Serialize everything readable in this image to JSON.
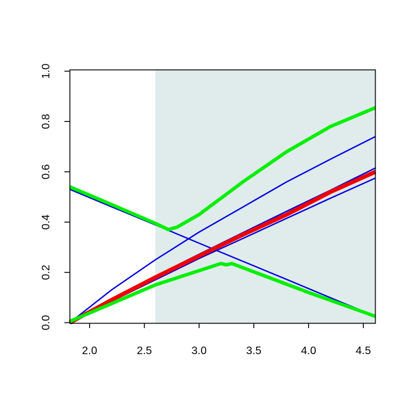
{
  "chart_data": {
    "type": "line",
    "xlim": [
      1.82,
      4.61
    ],
    "ylim": [
      0,
      1
    ],
    "xticks": [
      {
        "value": 2,
        "label": "2.0"
      },
      {
        "value": 2.5,
        "label": "2.5"
      },
      {
        "value": 3,
        "label": "3.0"
      },
      {
        "value": 3.5,
        "label": "3.5"
      },
      {
        "value": 4,
        "label": "4.0"
      },
      {
        "value": 4.5,
        "label": "4.5"
      }
    ],
    "yticks": [
      {
        "value": 0,
        "label": "0.0"
      },
      {
        "value": 0.2,
        "label": "0.2"
      },
      {
        "value": 0.4,
        "label": "0.4"
      },
      {
        "value": 0.6,
        "label": "0.6"
      },
      {
        "value": 0.8,
        "label": "0.8"
      },
      {
        "value": 1,
        "label": "1.0"
      }
    ],
    "shade": {
      "from": 2.6,
      "color": "#e0ecec"
    },
    "series": [
      {
        "color": "#0000dd",
        "x": [
          1.82,
          2.2,
          2.6,
          3.0,
          3.4,
          3.8,
          4.2,
          4.61
        ],
        "values": [
          0.53,
          0.461,
          0.389,
          0.316,
          0.244,
          0.172,
          0.099,
          0.025
        ]
      },
      {
        "color": "#0000dd",
        "x": [
          1.82,
          2.2,
          2.6,
          3.0,
          3.4,
          3.8,
          4.2,
          4.61
        ],
        "values": [
          0,
          0.13,
          0.25,
          0.36,
          0.46,
          0.56,
          0.65,
          0.74
        ]
      },
      {
        "color": "#0000dd",
        "x": [
          1.82,
          2.2,
          2.6,
          3.0,
          3.4,
          3.8,
          4.2,
          4.61
        ],
        "values": [
          0,
          0.092,
          0.185,
          0.272,
          0.358,
          0.443,
          0.527,
          0.615
        ]
      },
      {
        "color": "#0000dd",
        "x": [
          1.82,
          2.2,
          2.6,
          3.0,
          3.4,
          3.8,
          4.2,
          4.61
        ],
        "values": [
          0,
          0.085,
          0.17,
          0.255,
          0.335,
          0.415,
          0.495,
          0.575
        ]
      },
      {
        "color": "#ee0000",
        "x": [
          1.82,
          2.2,
          2.6,
          3.0,
          3.4,
          3.8,
          4.2,
          4.61
        ],
        "values": [
          0,
          0.09,
          0.18,
          0.265,
          0.35,
          0.43,
          0.52,
          0.6
        ]
      },
      {
        "color": "#00ee00",
        "x": [
          1.82,
          2.2,
          2.6,
          2.72,
          2.8,
          3.0,
          3.4,
          3.8,
          4.2,
          4.61
        ],
        "values": [
          0.54,
          0.47,
          0.395,
          0.37,
          0.38,
          0.43,
          0.56,
          0.68,
          0.78,
          0.855
        ]
      },
      {
        "color": "#00ee00",
        "x": [
          1.82,
          2.6,
          3.2,
          3.25,
          3.3,
          4.0,
          4.61
        ],
        "values": [
          0.005,
          0.15,
          0.235,
          0.23,
          0.235,
          0.12,
          0.025
        ]
      }
    ]
  }
}
